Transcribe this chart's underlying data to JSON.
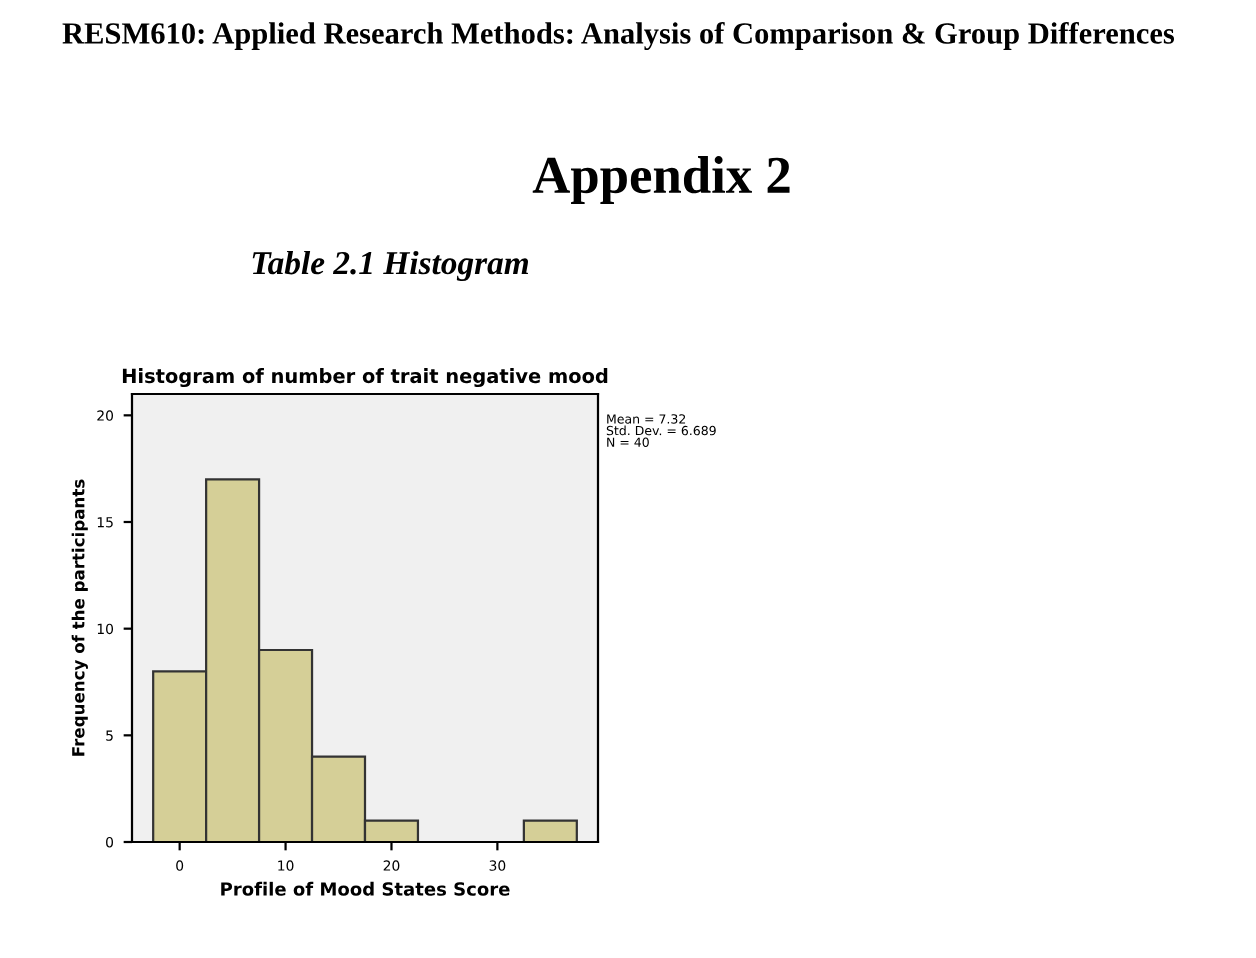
{
  "chart_data": {
    "type": "histogram",
    "title": "Histogram of number of trait negative mood",
    "xlabel": "Profile of Mood States Score",
    "ylabel": "Frequency of the participants",
    "bins": [
      -2.5,
      2.5,
      7.5,
      12.5,
      17.5,
      22.5,
      27.5,
      32.5,
      37.5
    ],
    "values": [
      8,
      17,
      9,
      4,
      1,
      0,
      0,
      1
    ],
    "color": "#d5cf97",
    "xlim": [
      -4.5,
      39.5
    ],
    "ylim": [
      0,
      21
    ],
    "xticks": [
      0,
      10,
      20,
      30
    ],
    "yticks": [
      0,
      5,
      10,
      15,
      20
    ],
    "grid": false,
    "annotations": [
      "RESM610: Applied Research Methods: Analysis of Comparison & Group Differences",
      "Appendix 2",
      "Table 2.1 Histogram",
      "Mean = 7.32\nStd. Dev. = 6.689\nN = 40"
    ]
  }
}
